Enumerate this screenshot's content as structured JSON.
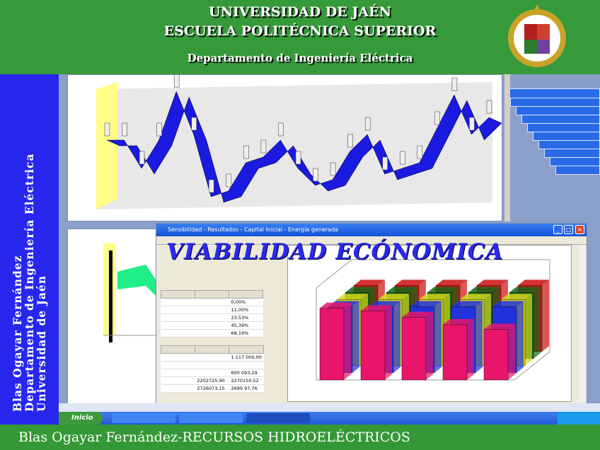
{
  "header": {
    "line1": "UNIVERSIDAD DE JAÉN",
    "line2": "ESCUELA POLITÉCNICA SUPERIOR",
    "line3": "Departamento de Ingeniería Eléctrica"
  },
  "sidebar": {
    "lines": [
      "Blas Ogayar Fernández",
      "Departamento de Ingeniería Eléctrica",
      "Universidad de Jaén"
    ]
  },
  "main_window": {
    "title": "Sensibilidad - Resultados - Capital Inicial - Energía generada",
    "overlay_title": "VIABILIDAD ECÓNOMICA",
    "table1": {
      "headers": [
        "",
        "",
        ""
      ],
      "rows": [
        [
          "",
          "",
          "0,00%"
        ],
        [
          "",
          "",
          "11,00%"
        ],
        [
          "",
          "",
          "23,53%"
        ],
        [
          "",
          "",
          "45,39%"
        ],
        [
          "",
          "",
          "68,19%"
        ]
      ]
    },
    "table2": {
      "headers": [
        "",
        "",
        ""
      ],
      "rows": [
        [
          "",
          "",
          "1 117 000,00"
        ],
        [
          "",
          "",
          ""
        ],
        [
          "",
          "",
          "600 093,29"
        ],
        [
          "",
          "2202725,90",
          "2270150,52"
        ],
        [
          "",
          "2726073,15",
          "2699 97,76"
        ]
      ]
    }
  },
  "upper_chart": {
    "values": [
      0.55,
      0.55,
      0.3,
      0.55,
      0.98,
      0.6,
      0.05,
      0.1,
      0.35,
      0.4,
      0.55,
      0.3,
      0.15,
      0.2,
      0.45,
      0.6,
      0.25,
      0.3,
      0.35,
      0.65,
      0.95,
      0.6,
      0.75
    ]
  },
  "bar3d": {
    "front_values": [
      0.78,
      0.75,
      0.68,
      0.6,
      0.55
    ],
    "colors": [
      "#e8156b",
      "#2233dd",
      "#d8d820",
      "#15661a",
      "#cc1010"
    ]
  },
  "taskbar": {
    "start": "Inicio",
    "items": [
      "",
      "",
      ""
    ]
  },
  "footer": {
    "text": "Blas Ogayar Fernández-RECURSOS HIDROELÉCTRICOS"
  },
  "colors": {
    "green": "#36993a",
    "blue": "#2727ee",
    "title_blue": "#2a2aee"
  }
}
